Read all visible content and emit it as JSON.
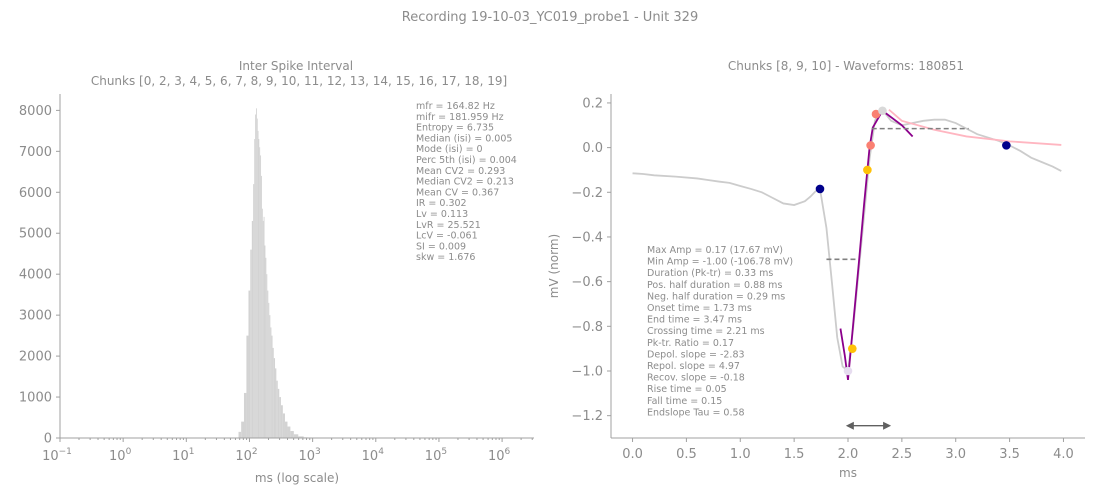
{
  "figure": {
    "suptitle": "Recording 19-10-03_YC019_probe1 - Unit 329"
  },
  "colors": {
    "text": "#8c8c8c",
    "axis": "#a0a0a0",
    "hist": "#d3d3d3",
    "waveform": "#cccccc",
    "purple": "#8b008b",
    "pink": "#ffb6c1",
    "salmon": "#fa8072",
    "gold": "#ffc107",
    "navy": "#00008b",
    "dashed": "#808080"
  },
  "chart_data": [
    {
      "type": "bar",
      "title": "Inter Spike Interval",
      "subtitle": "Chunks [0, 2, 3, 4, 5, 6, 7, 8, 9, 10, 11, 12, 13, 14, 15, 16, 17, 18, 19]",
      "xlabel": "ms (log scale)",
      "ylabel": "",
      "xscale": "log",
      "xlim": [
        0.1,
        3200000
      ],
      "ylim": [
        0,
        8400
      ],
      "xticks": [
        {
          "value": 0.1,
          "base": "10",
          "exp": "−1"
        },
        {
          "value": 1,
          "base": "10",
          "exp": "0"
        },
        {
          "value": 10,
          "base": "10",
          "exp": "1"
        },
        {
          "value": 100,
          "base": "10",
          "exp": "2"
        },
        {
          "value": 1000,
          "base": "10",
          "exp": "3"
        },
        {
          "value": 10000,
          "base": "10",
          "exp": "4"
        },
        {
          "value": 100000,
          "base": "10",
          "exp": "5"
        },
        {
          "value": 1000000,
          "base": "10",
          "exp": "6"
        }
      ],
      "yticks": [
        {
          "value": 0,
          "label": "0"
        },
        {
          "value": 1000,
          "label": "1000"
        },
        {
          "value": 2000,
          "label": "2000"
        },
        {
          "value": 3000,
          "label": "3000"
        },
        {
          "value": 4000,
          "label": "4000"
        },
        {
          "value": 5000,
          "label": "5000"
        },
        {
          "value": 6000,
          "label": "6000"
        },
        {
          "value": 7000,
          "label": "7000"
        },
        {
          "value": 8000,
          "label": "8000"
        }
      ],
      "bins_ms": [
        70,
        78,
        86,
        93,
        100,
        106,
        112,
        117,
        121,
        125,
        129,
        133,
        137,
        141,
        145,
        150,
        155,
        160,
        165,
        170,
        176,
        182,
        188,
        195,
        202,
        210,
        218,
        227,
        237,
        248,
        260,
        273,
        288,
        305,
        325,
        350,
        380,
        420,
        470,
        540,
        650,
        800
      ],
      "counts": [
        150,
        400,
        1100,
        2500,
        3600,
        4600,
        5300,
        6200,
        7300,
        7900,
        8050,
        7800,
        7500,
        7300,
        7100,
        6900,
        6400,
        5600,
        5300,
        5400,
        4700,
        4400,
        4000,
        3600,
        3300,
        3000,
        2700,
        2500,
        2200,
        1950,
        1700,
        1400,
        1200,
        1000,
        800,
        600,
        400,
        280,
        170,
        90,
        40,
        15
      ],
      "stats": [
        "mfr = 164.82 Hz",
        "mifr = 181.959 Hz",
        "Entropy = 6.735",
        "Median (isi) = 0.005",
        "Mode (isi) = 0",
        "Perc 5th (isi) = 0.004",
        "Mean CV2 = 0.293",
        "Median CV2 = 0.213",
        "Mean CV = 0.367",
        "IR = 0.302",
        "Lv = 0.113",
        "LvR = 25.521",
        "LcV = -0.061",
        "SI = 0.009",
        "skw = 1.676"
      ]
    },
    {
      "type": "line",
      "title": "Chunks [8, 9, 10] - Waveforms: 180851",
      "xlabel": "ms",
      "ylabel": "mV (norm)",
      "xlim": [
        -0.2,
        4.2
      ],
      "ylim": [
        -1.3,
        0.24
      ],
      "xticks": [
        {
          "value": 0,
          "label": "0.0"
        },
        {
          "value": 0.5,
          "label": "0.5"
        },
        {
          "value": 1.0,
          "label": "1.0"
        },
        {
          "value": 1.5,
          "label": "1.5"
        },
        {
          "value": 2.0,
          "label": "2.0"
        },
        {
          "value": 2.5,
          "label": "2.5"
        },
        {
          "value": 3.0,
          "label": "3.0"
        },
        {
          "value": 3.5,
          "label": "3.5"
        },
        {
          "value": 4.0,
          "label": "4.0"
        }
      ],
      "yticks": [
        {
          "value": 0.2,
          "label": "0.2"
        },
        {
          "value": 0.0,
          "label": "0.0"
        },
        {
          "value": -0.2,
          "label": "−0.2"
        },
        {
          "value": -0.4,
          "label": "−0.4"
        },
        {
          "value": -0.6,
          "label": "−0.6"
        },
        {
          "value": -0.8,
          "label": "−0.8"
        },
        {
          "value": -1.0,
          "label": "−1.0"
        },
        {
          "value": -1.2,
          "label": "−1.2"
        }
      ],
      "waveform": {
        "x": [
          0,
          0.1,
          0.2,
          0.4,
          0.6,
          0.7,
          0.8,
          0.9,
          1.0,
          1.1,
          1.2,
          1.3,
          1.4,
          1.5,
          1.6,
          1.65,
          1.7,
          1.74,
          1.8,
          1.85,
          1.9,
          1.95,
          2.0,
          2.05,
          2.1,
          2.15,
          2.2,
          2.25,
          2.3,
          2.35,
          2.4,
          2.5,
          2.6,
          2.7,
          2.8,
          2.9,
          3.0,
          3.1,
          3.2,
          3.3,
          3.4,
          3.5,
          3.6,
          3.7,
          3.8,
          3.9,
          3.98
        ],
        "y": [
          -0.115,
          -0.118,
          -0.124,
          -0.13,
          -0.138,
          -0.145,
          -0.152,
          -0.158,
          -0.172,
          -0.185,
          -0.2,
          -0.225,
          -0.25,
          -0.257,
          -0.24,
          -0.22,
          -0.195,
          -0.185,
          -0.36,
          -0.6,
          -0.85,
          -0.98,
          -1.0,
          -0.8,
          -0.55,
          -0.3,
          -0.05,
          0.12,
          0.17,
          0.15,
          0.12,
          0.1,
          0.11,
          0.12,
          0.125,
          0.125,
          0.11,
          0.085,
          0.06,
          0.045,
          0.03,
          0.01,
          -0.015,
          -0.045,
          -0.065,
          -0.085,
          -0.105
        ]
      },
      "purple_fit": [
        [
          1.93,
          -0.81
        ],
        [
          1.97,
          -0.93
        ],
        [
          2.0,
          -1.04
        ],
        [
          2.05,
          -0.78
        ],
        [
          2.1,
          -0.52
        ],
        [
          2.15,
          -0.25
        ],
        [
          2.2,
          0.0
        ],
        [
          2.23,
          0.09
        ],
        [
          2.32,
          0.165
        ],
        [
          2.5,
          0.1
        ],
        [
          2.6,
          0.05
        ]
      ],
      "pink_fit": [
        [
          2.38,
          0.17
        ],
        [
          2.5,
          0.12
        ],
        [
          2.8,
          0.08
        ],
        [
          3.1,
          0.05
        ],
        [
          3.5,
          0.028
        ],
        [
          3.98,
          0.012
        ]
      ],
      "dashed_lines": [
        {
          "x0": 1.8,
          "x1": 2.08,
          "y": -0.5
        },
        {
          "x0": 2.22,
          "x1": 3.12,
          "y": 0.085
        }
      ],
      "markers": [
        {
          "x": 1.74,
          "y": -0.185,
          "color": "#00008b",
          "label": "onset"
        },
        {
          "x": 3.47,
          "y": 0.01,
          "color": "#00008b",
          "label": "end"
        },
        {
          "x": 2.26,
          "y": 0.15,
          "color": "#fa8072",
          "label": "peak"
        },
        {
          "x": 2.21,
          "y": 0.01,
          "color": "#fa8072",
          "label": "crossing"
        },
        {
          "x": 2.18,
          "y": -0.1,
          "color": "#ffc107",
          "label": "rise"
        },
        {
          "x": 2.04,
          "y": -0.9,
          "color": "#ffc107",
          "label": "fall"
        },
        {
          "x": 2.0,
          "y": -1.0,
          "color": "#e6dcef",
          "label": "trough"
        },
        {
          "x": 2.32,
          "y": 0.165,
          "color": "#d9d9d9",
          "label": "max"
        }
      ],
      "arrow": {
        "x0": 1.98,
        "x1": 2.4,
        "y": -1.245
      },
      "stats": [
        "Max Amp = 0.17 (17.67 mV)",
        "Min Amp = -1.00 (-106.78 mV)",
        "Duration (Pk-tr) = 0.33 ms",
        "Pos. half duration = 0.88 ms",
        "Neg. half duration = 0.29 ms",
        "Onset time = 1.73 ms",
        "End time = 3.47 ms",
        "Crossing time = 2.21 ms",
        "Pk-tr. Ratio = 0.17",
        "Depol. slope = -2.83",
        "Repol. slope = 4.97",
        "Recov. slope = -0.18",
        "Rise time = 0.05",
        "Fall time = 0.15",
        "Endslope Tau = 0.58"
      ]
    }
  ]
}
